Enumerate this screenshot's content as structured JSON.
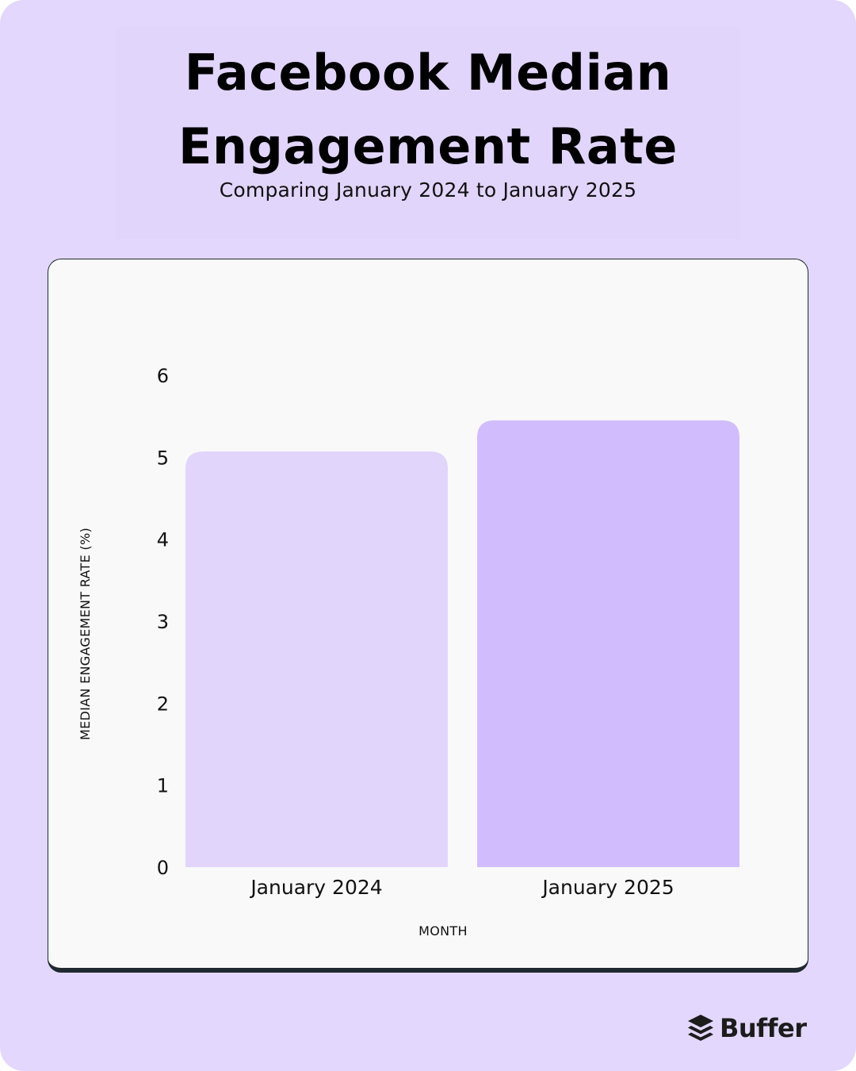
{
  "header": {
    "title": "Facebook Median Engagement Rate",
    "subtitle": "Comparing January 2024 to January 2025"
  },
  "chart_data": {
    "type": "bar",
    "categories": [
      "January 2024",
      "January 2025"
    ],
    "values": [
      5.07,
      5.45
    ],
    "xlabel": "MONTH",
    "ylabel": "MEDIAN ENGAGEMENT RATE (%)",
    "ylim": [
      0,
      6
    ],
    "yticks": [
      "0",
      "1",
      "2",
      "3",
      "4",
      "5",
      "6"
    ],
    "grid": false,
    "bar_colors": [
      "#e1d5fc",
      "#d1bdfe"
    ]
  },
  "brand": {
    "name": "Buffer",
    "logo_icon": "buffer-stack-icon"
  },
  "colors": {
    "page_background": "#e3d7fd",
    "card_background": "#f9f9f9",
    "card_border": "#1f2a30"
  }
}
